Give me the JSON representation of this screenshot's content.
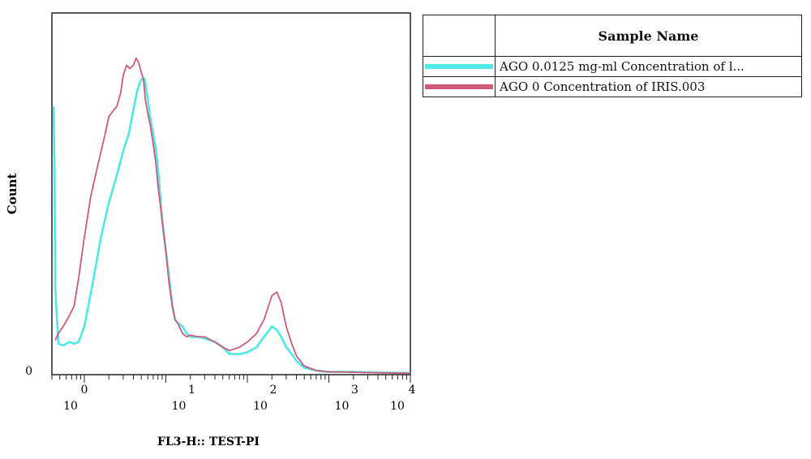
{
  "chart_data": {
    "type": "line",
    "xlabel": "FL3-H:: TEST-PI",
    "ylabel": "Count",
    "x_scale": "log",
    "xlim": [
      0.4,
      10000
    ],
    "ylim": [
      0,
      100
    ],
    "y_tick_labels": [
      "0"
    ],
    "x_tick_labels": [
      {
        "value": 1,
        "base": "10",
        "exp": "0"
      },
      {
        "value": 10,
        "base": "10",
        "exp": "1"
      },
      {
        "value": 100,
        "base": "10",
        "exp": "2"
      },
      {
        "value": 1000,
        "base": "10",
        "exp": "3"
      },
      {
        "value": 10000,
        "base": "10",
        "exp": "4"
      }
    ],
    "grid": false,
    "legend_placement": "right",
    "legend_header": "Sample Name",
    "series": [
      {
        "name": "AGO 0.0125 mg-ml Concentration of l...",
        "color": "#4fe8e8",
        "x": [
          0.42,
          0.43,
          0.44,
          0.48,
          0.55,
          0.65,
          0.75,
          0.85,
          1.0,
          1.3,
          1.6,
          2.0,
          2.5,
          3.0,
          3.5,
          4.0,
          4.5,
          5.0,
          5.5,
          6.0,
          6.5,
          7.0,
          7.5,
          8.0,
          9.0,
          10.0,
          11.0,
          12.0,
          13.0,
          14.0,
          16.0,
          18.0,
          20.0,
          25.0,
          30.0,
          40.0,
          50.0,
          60.0,
          80.0,
          100.0,
          130.0,
          160.0,
          200.0,
          230.0,
          260.0,
          300.0,
          350.0,
          400.0,
          500.0,
          700.0,
          1000.0,
          1500.0,
          2000.0,
          3000.0,
          5000.0,
          10000.0
        ],
        "values": [
          78.0,
          60.0,
          25.0,
          9.0,
          8.5,
          9.5,
          9.0,
          9.5,
          14.0,
          28.0,
          40.0,
          50.0,
          58.0,
          65.0,
          70.0,
          77.0,
          83.0,
          86.0,
          86.0,
          80.0,
          74.0,
          70.0,
          66.0,
          60.0,
          45.0,
          36.0,
          28.0,
          20.0,
          16.0,
          15.0,
          14.0,
          12.0,
          11.0,
          11.0,
          10.5,
          9.5,
          8.0,
          6.0,
          6.0,
          6.5,
          8.0,
          11.0,
          14.0,
          13.0,
          11.0,
          8.0,
          6.0,
          4.0,
          2.0,
          1.2,
          0.8,
          0.8,
          0.8,
          0.7,
          0.6,
          0.5
        ]
      },
      {
        "name": "AGO 0 Concentration of IRIS.003",
        "color": "#d05a7a",
        "x": [
          0.44,
          0.48,
          0.55,
          0.65,
          0.75,
          0.85,
          1.0,
          1.2,
          1.5,
          1.8,
          2.0,
          2.3,
          2.5,
          2.8,
          3.0,
          3.3,
          3.6,
          4.0,
          4.3,
          4.6,
          5.0,
          5.3,
          5.6,
          6.0,
          6.5,
          7.0,
          7.5,
          8.0,
          9.0,
          10.0,
          11.0,
          12.0,
          13.0,
          14.0,
          16.0,
          18.0,
          20.0,
          25.0,
          30.0,
          40.0,
          50.0,
          60.0,
          70.0,
          80.0,
          100.0,
          130.0,
          160.0,
          200.0,
          230.0,
          260.0,
          300.0,
          350.0,
          400.0,
          500.0,
          700.0,
          1000.0,
          1500.0,
          2000.0,
          3000.0,
          5000.0,
          10000.0
        ],
        "values": [
          10.0,
          12.0,
          14.0,
          17.0,
          20.0,
          28.0,
          40.0,
          52.0,
          62.0,
          70.0,
          75.0,
          77.0,
          78.0,
          82.0,
          87.0,
          90.0,
          89.0,
          90.0,
          92.0,
          91.0,
          88.0,
          86.0,
          80.0,
          76.0,
          72.0,
          67.0,
          62.0,
          55.0,
          45.0,
          36.0,
          26.0,
          20.0,
          16.0,
          15.0,
          12.0,
          11.0,
          11.5,
          11.0,
          11.0,
          9.5,
          8.0,
          7.0,
          7.5,
          8.0,
          9.5,
          12.0,
          16.0,
          23.0,
          24.0,
          21.0,
          14.0,
          9.0,
          5.5,
          2.5,
          1.2,
          0.8,
          0.8,
          0.7,
          0.6,
          0.5,
          0.4
        ]
      }
    ]
  }
}
